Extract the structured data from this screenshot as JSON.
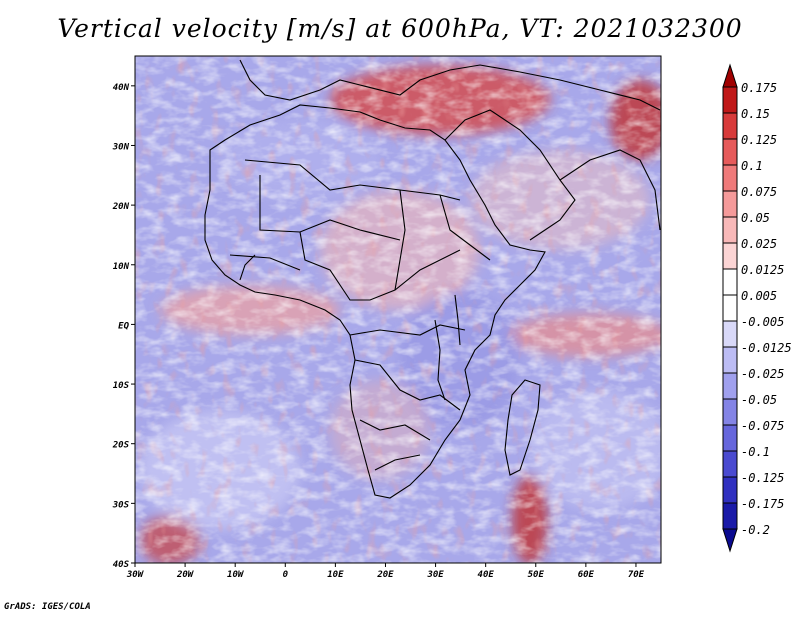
{
  "title": "Vertical velocity [m/s] at 600hPa, VT: 2021032300",
  "credit": "GrADS: IGES/COLA",
  "map": {
    "lat_labels": [
      "40N",
      "30N",
      "20N",
      "10N",
      "EQ",
      "10S",
      "20S",
      "30S",
      "40S"
    ],
    "lon_labels": [
      "30W",
      "20W",
      "10W",
      "0",
      "10E",
      "20E",
      "30E",
      "40E",
      "50E",
      "60E",
      "70E"
    ],
    "lat_range": [
      -40,
      45
    ],
    "lon_range": [
      -30,
      75
    ]
  },
  "colorbar": {
    "labels": [
      "0.175",
      "0.15",
      "0.125",
      "0.1",
      "0.075",
      "0.05",
      "0.025",
      "0.0125",
      "0.005",
      "-0.005",
      "-0.0125",
      "-0.025",
      "-0.05",
      "-0.075",
      "-0.1",
      "-0.125",
      "-0.175",
      "-0.2"
    ],
    "colors": [
      "#a00000",
      "#c01818",
      "#d83a3a",
      "#e65a5a",
      "#ef7a7a",
      "#f59a9a",
      "#f8b8b8",
      "#fbd4d4",
      "#ffffff",
      "#ffffff",
      "#d8d8f8",
      "#bcbcf4",
      "#a0a0ee",
      "#8484e6",
      "#6666dc",
      "#4a4ad0",
      "#3030c0",
      "#1a1aa8",
      "#0a0a90"
    ]
  },
  "chart_data": {
    "type": "heatmap",
    "title": "Vertical velocity [m/s] at 600hPa, VT: 2021032300",
    "x_ticks": [
      "30W",
      "20W",
      "10W",
      "0",
      "10E",
      "20E",
      "30E",
      "40E",
      "50E",
      "60E",
      "70E"
    ],
    "y_ticks": [
      "40N",
      "30N",
      "20N",
      "10N",
      "EQ",
      "10S",
      "20S",
      "30S",
      "40S"
    ],
    "color_levels": [
      -0.2,
      -0.175,
      -0.125,
      -0.1,
      -0.075,
      -0.05,
      -0.025,
      -0.0125,
      -0.005,
      0.005,
      0.0125,
      0.025,
      0.05,
      0.075,
      0.1,
      0.125,
      0.15,
      0.175
    ]
  }
}
